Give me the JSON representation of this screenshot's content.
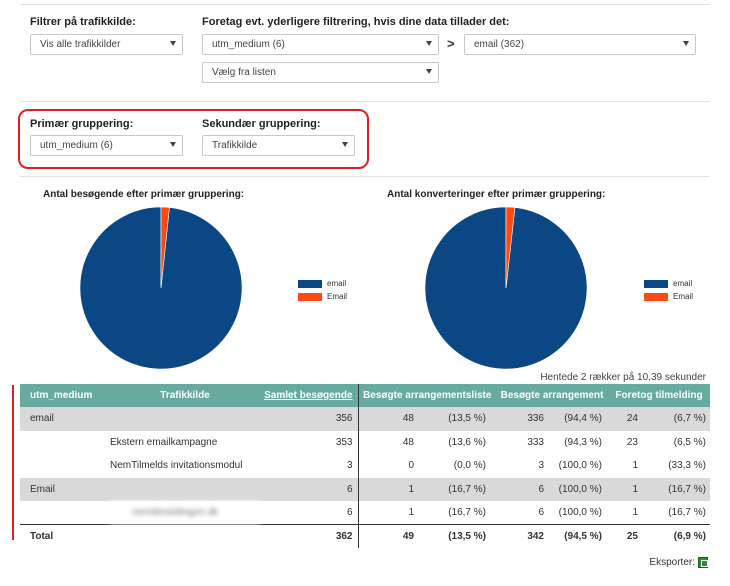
{
  "filters": {
    "source_label": "Filtrer på trafikkilde:",
    "source_value": "Vis alle trafikkilder",
    "further_label": "Foretag evt. yderligere filtrering, hvis dine data tillader det:",
    "further_dim_value": "utm_medium (6)",
    "arrow": ">",
    "further_val_value": "email (362)",
    "list_placeholder": "Vælg fra listen"
  },
  "grouping": {
    "primary_label": "Primær gruppering:",
    "primary_value": "utm_medium (6)",
    "secondary_label": "Sekundær gruppering:",
    "secondary_value": "Trafikkilde"
  },
  "charts": {
    "visitors_title": "Antal besøgende efter primær gruppering:",
    "conversions_title": "Antal konverteringer efter primær gruppering:"
  },
  "chart_data": [
    {
      "type": "pie",
      "title": "Antal besøgende efter primær gruppering:",
      "labels": [
        "email",
        "Email"
      ],
      "values": [
        356,
        6
      ],
      "colors": [
        "#0b4785",
        "#ff4a0f"
      ],
      "legend_position": "right"
    },
    {
      "type": "pie",
      "title": "Antal konverteringer efter primær gruppering:",
      "labels": [
        "email",
        "Email"
      ],
      "values": [
        336,
        6
      ],
      "colors": [
        "#0b4785",
        "#ff4a0f"
      ],
      "legend_position": "right"
    }
  ],
  "status_text": "Hentede 2 rækker på 10,39 sekunder",
  "table": {
    "headers": {
      "h0": "utm_medium",
      "h1": "Trafikkilde",
      "h2": "Samlet besøgende",
      "h3": "Besøgte arrangementsliste",
      "h4": "Besøgte arrangement",
      "h5": "Foretog tilmelding"
    },
    "rows": [
      {
        "c0": "email",
        "c1": "",
        "c2": "356",
        "c3": "48",
        "c4": "(13,5 %)",
        "c5": "336",
        "c6": "(94,4 %)",
        "c7": "24",
        "c8": "(6,7 %)"
      },
      {
        "c0": "",
        "c1": "Ekstern emailkampagne",
        "c2": "353",
        "c3": "48",
        "c4": "(13,6 %)",
        "c5": "333",
        "c6": "(94,3 %)",
        "c7": "23",
        "c8": "(6,5 %)"
      },
      {
        "c0": "",
        "c1": "NemTilmelds invitationsmodul",
        "c2": "3",
        "c3": "0",
        "c4": "(0,0 %)",
        "c5": "3",
        "c6": "(100,0 %)",
        "c7": "1",
        "c8": "(33,3 %)"
      },
      {
        "c0": "Email",
        "c1": "",
        "c2": "6",
        "c3": "1",
        "c4": "(16,7 %)",
        "c5": "6",
        "c6": "(100,0 %)",
        "c7": "1",
        "c8": "(16,7 %)"
      },
      {
        "c0": "",
        "c1": "nemtilmeldingen.dk",
        "c2": "6",
        "c3": "1",
        "c4": "(16,7 %)",
        "c5": "6",
        "c6": "(100,0 %)",
        "c7": "1",
        "c8": "(16,7 %)"
      }
    ],
    "total": {
      "c0": "Total",
      "c2": "362",
      "c3": "49",
      "c4": "(13,5 %)",
      "c5": "342",
      "c6": "(94,5 %)",
      "c7": "25",
      "c8": "(6,9 %)"
    }
  },
  "export_label": "Eksporter:"
}
